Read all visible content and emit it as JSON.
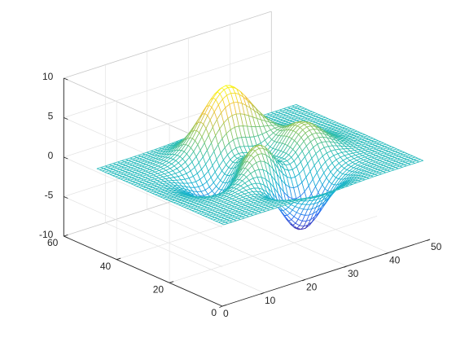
{
  "chart_data": {
    "type": "mesh",
    "function": "peaks",
    "grid": true,
    "colormap": "parula",
    "colormap_stops": [
      "#3e26a8",
      "#2e6ff4",
      "#15b1d4",
      "#2fbeb0",
      "#8ec55c",
      "#f0c23a",
      "#f9fb15"
    ],
    "x": {
      "lim": [
        0,
        50
      ],
      "ticks": [
        0,
        10,
        20,
        30,
        40,
        50
      ],
      "tick_labels": [
        "0",
        "10",
        "20",
        "30",
        "40",
        "50"
      ],
      "samples": 49
    },
    "y": {
      "lim": [
        0,
        60
      ],
      "ticks": [
        0,
        20,
        40,
        60
      ],
      "tick_labels": [
        "0",
        "20",
        "40",
        "60"
      ],
      "samples": 49
    },
    "z": {
      "lim": [
        -10,
        10
      ],
      "ticks": [
        -10,
        -5,
        0,
        5,
        10
      ],
      "tick_labels": [
        "-10",
        "-5",
        "0",
        "5",
        "10"
      ]
    },
    "surface_extrema": {
      "max": 8.1,
      "min": -6.5
    },
    "title": "",
    "xlabel": "",
    "ylabel": "",
    "zlabel": ""
  }
}
